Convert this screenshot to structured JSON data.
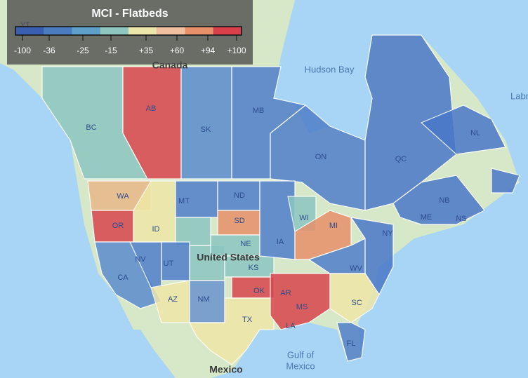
{
  "legend": {
    "title": "MCI - Flatbeds",
    "labels": [
      "-100",
      "-36",
      "-25",
      "-15",
      "+35",
      "+60",
      "+94",
      "+100"
    ]
  },
  "map_labels": {
    "countries": [
      "Canada",
      "United States",
      "Mexico"
    ],
    "water": [
      "Hudson Bay",
      "Gulf of",
      "Mexico",
      "Labr"
    ],
    "regions": [
      "YT",
      "BC",
      "AB",
      "SK",
      "MB",
      "ON",
      "QC",
      "NL",
      "NB",
      "ME",
      "NS",
      "WA",
      "OR",
      "ID",
      "MT",
      "ND",
      "SD",
      "NE",
      "KS",
      "OK",
      "AR",
      "MS",
      "LA",
      "TX",
      "IA",
      "WI",
      "MI",
      "NY",
      "WV",
      "SC",
      "FL",
      "NV",
      "UT",
      "AZ",
      "NM",
      "CA"
    ]
  }
}
